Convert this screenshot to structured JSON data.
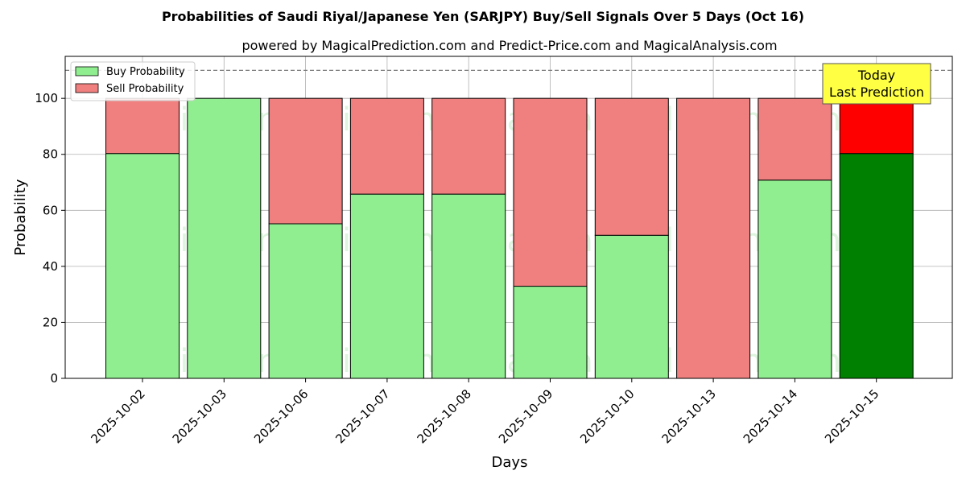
{
  "chart_data": {
    "type": "bar",
    "stacked": true,
    "title": "Probabilities of Saudi Riyal/Japanese Yen (SARJPY) Buy/Sell Signals Over 5 Days (Oct 16)",
    "subtitle": "powered by MagicalPrediction.com and Predict-Price.com and MagicalAnalysis.com",
    "xlabel": "Days",
    "ylabel": "Probability",
    "ylim": [
      0,
      115
    ],
    "yticks": [
      0,
      20,
      40,
      60,
      80,
      100
    ],
    "grid": true,
    "legend_position": "top-left",
    "reference_line": 110,
    "categories": [
      "2025-10-02",
      "2025-10-03",
      "2025-10-06",
      "2025-10-07",
      "2025-10-08",
      "2025-10-09",
      "2025-10-10",
      "2025-10-13",
      "2025-10-14",
      "2025-10-15"
    ],
    "series": [
      {
        "name": "Buy Probability",
        "values": [
          80.3,
          100,
          55.2,
          65.8,
          65.8,
          32.9,
          51.1,
          0,
          70.8,
          80.3
        ],
        "color": "#90ee90",
        "highlight_color": "#008000"
      },
      {
        "name": "Sell Probability",
        "values": [
          19.7,
          0,
          44.8,
          34.2,
          34.2,
          67.1,
          48.9,
          100,
          29.2,
          19.7
        ],
        "color": "#f08080",
        "highlight_color": "#ff0000"
      }
    ],
    "highlight_index": 9,
    "annotation": {
      "line1": "Today",
      "line2": "Last Prediction",
      "color": "#ffff44"
    },
    "watermarks": [
      "MagicalAnalysis.com",
      "MagicalPrediction.com"
    ]
  }
}
